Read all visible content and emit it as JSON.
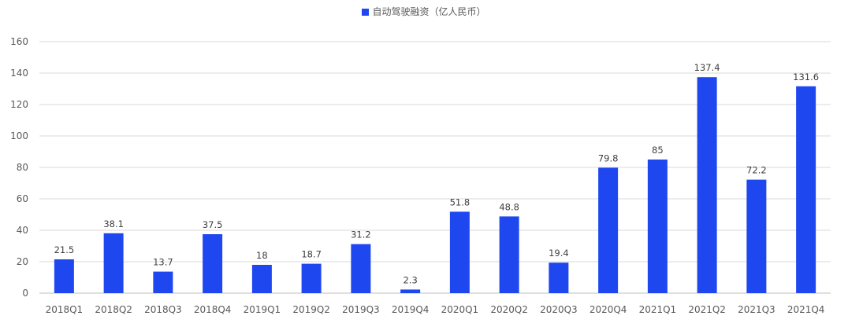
{
  "chart_data": {
    "type": "bar",
    "legend_position": "top-center",
    "grid": true,
    "ylim": [
      0,
      160
    ],
    "yticks": [
      "0",
      "20",
      "40",
      "60",
      "80",
      "100",
      "120",
      "140",
      "160"
    ],
    "categories": [
      "2018Q1",
      "2018Q2",
      "2018Q3",
      "2018Q4",
      "2019Q1",
      "2019Q2",
      "2019Q3",
      "2019Q4",
      "2020Q1",
      "2020Q2",
      "2020Q3",
      "2020Q4",
      "2021Q1",
      "2021Q2",
      "2021Q3",
      "2021Q4"
    ],
    "series": [
      {
        "name": "自动驾驶融资（亿人民币）",
        "values": [
          21.5,
          38.1,
          13.7,
          37.5,
          18,
          18.7,
          31.2,
          2.3,
          51.8,
          48.8,
          19.4,
          79.8,
          85,
          137.4,
          72.2,
          131.6
        ],
        "color": "#1f47f0"
      }
    ],
    "colors": {
      "grid": "#d9d9d9",
      "axis": "#bfbfbf",
      "text": "#595959"
    }
  }
}
